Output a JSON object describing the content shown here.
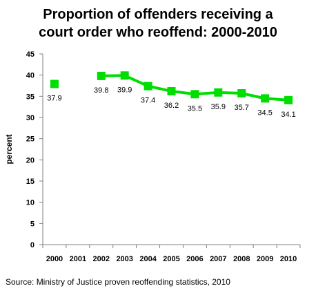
{
  "chart_data": {
    "type": "line",
    "title_lines": [
      "Proportion of offenders receiving a",
      "court order who reoffend: 2000-2010"
    ],
    "xlabel": "",
    "ylabel": "percent",
    "categories": [
      "2000",
      "2001",
      "2002",
      "2003",
      "2004",
      "2005",
      "2006",
      "2007",
      "2008",
      "2009",
      "2010"
    ],
    "ylim": [
      0,
      45
    ],
    "yticks": [
      0,
      5,
      10,
      15,
      20,
      25,
      30,
      35,
      40,
      45
    ],
    "grid": false,
    "legend": "none",
    "series": [
      {
        "values": [
          37.9,
          null,
          39.8,
          39.9,
          37.4,
          36.2,
          35.5,
          35.9,
          35.7,
          34.5,
          34.1
        ],
        "labels": [
          "37.9",
          "",
          "39.8",
          "39.9",
          "37.4",
          "36.2",
          "35.5",
          "35.9",
          "35.7",
          "34.5",
          "34.1"
        ],
        "color": "#00dd00"
      }
    ]
  },
  "source": "Source: Ministry of Justice proven reoffending statistics, 2010"
}
